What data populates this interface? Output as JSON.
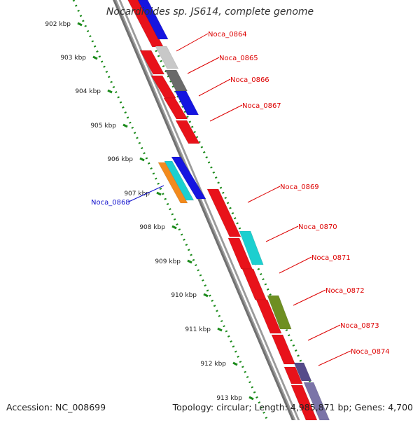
{
  "title": "Nocardioides sp. JS614, complete genome",
  "footer": {
    "accession": "Accession: NC_008699",
    "summary": "Topology: circular; Length: 4,985,871 bp; Genes: 4,700"
  },
  "colors": {
    "backbone": "#888888",
    "scale_dots": "#1a8a1a",
    "label_forward": "#dd0000",
    "label_reverse": "#1010cc",
    "tick_label": "#222222"
  },
  "scale_labels": [
    "902 kbp",
    "903 kbp",
    "904 kbp",
    "905 kbp",
    "906 kbp",
    "907 kbp",
    "908 kbp",
    "909 kbp",
    "910 kbp",
    "911 kbp",
    "912 kbp",
    "913 kbp"
  ],
  "gene_labels": [
    {
      "text": "Noca_0864",
      "strand": "forward"
    },
    {
      "text": "Noca_0865",
      "strand": "forward"
    },
    {
      "text": "Noca_0866",
      "strand": "forward"
    },
    {
      "text": "Noca_0867",
      "strand": "forward"
    },
    {
      "text": "Noca_0868",
      "strand": "reverse"
    },
    {
      "text": "Noca_0869",
      "strand": "forward"
    },
    {
      "text": "Noca_0870",
      "strand": "forward"
    },
    {
      "text": "Noca_0871",
      "strand": "forward"
    },
    {
      "text": "Noca_0872",
      "strand": "forward"
    },
    {
      "text": "Noca_0873",
      "strand": "forward"
    },
    {
      "text": "Noca_0874",
      "strand": "forward"
    }
  ]
}
